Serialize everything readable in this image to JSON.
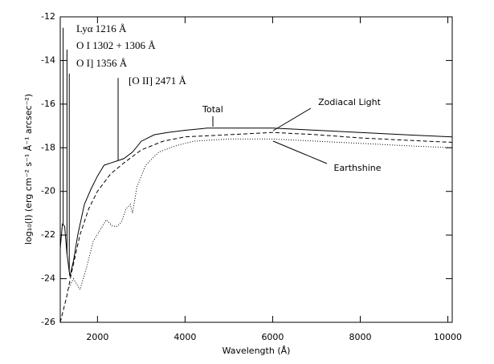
{
  "chart_data": {
    "type": "line",
    "xlabel": "Wavelength (Å)",
    "ylabel": "log₁₀(I) (erg cm⁻² s⁻¹ Å⁻¹ arcsec⁻²)",
    "xlim": [
      1150,
      10100
    ],
    "xticks": [
      2000,
      4000,
      6000,
      8000,
      10000
    ],
    "ylim": [
      -26,
      -12
    ],
    "yticks": [
      -12,
      -14,
      -16,
      -18,
      -20,
      -22,
      -24,
      -26
    ],
    "series": [
      {
        "name": "Total",
        "color": "#000000",
        "linestyle": "solid",
        "x": [
          1150,
          1200,
          1250,
          1300,
          1370,
          1450,
          1550,
          1700,
          1850,
          2000,
          2150,
          2300,
          2450,
          2600,
          2800,
          3000,
          3300,
          3600,
          4000,
          4500,
          5000,
          6000,
          7000,
          8000,
          9000,
          10100
        ],
        "values": [
          -22.6,
          -21.5,
          -21.6,
          -22.8,
          -23.9,
          -23.2,
          -22.0,
          -20.6,
          -19.9,
          -19.3,
          -18.8,
          -18.7,
          -18.6,
          -18.5,
          -18.2,
          -17.7,
          -17.4,
          -17.3,
          -17.2,
          -17.1,
          -17.1,
          -17.1,
          -17.2,
          -17.3,
          -17.4,
          -17.5
        ]
      },
      {
        "name": "Zodiacal Light",
        "color": "#000000",
        "linestyle": "dashed",
        "x": [
          1150,
          1300,
          1400,
          1600,
          1800,
          2000,
          2300,
          2600,
          3000,
          3500,
          4000,
          5000,
          6000,
          7000,
          8000,
          9000,
          10100
        ],
        "values": [
          -26,
          -24.8,
          -23.8,
          -22.0,
          -20.8,
          -20.0,
          -19.2,
          -18.7,
          -18.1,
          -17.7,
          -17.5,
          -17.4,
          -17.3,
          -17.4,
          -17.55,
          -17.65,
          -17.75
        ]
      },
      {
        "name": "Earthshine",
        "color": "#000000",
        "linestyle": "dotted",
        "x": [
          1350,
          1450,
          1600,
          1750,
          1900,
          2050,
          2200,
          2350,
          2450,
          2550,
          2650,
          2750,
          2800,
          2900,
          3100,
          3400,
          3800,
          4200,
          5000,
          6000,
          7000,
          8000,
          9000,
          10100
        ],
        "values": [
          -24.4,
          -24.0,
          -24.5,
          -23.5,
          -22.3,
          -21.8,
          -21.3,
          -21.6,
          -21.6,
          -21.4,
          -20.8,
          -20.6,
          -21.0,
          -19.8,
          -18.8,
          -18.2,
          -17.9,
          -17.7,
          -17.6,
          -17.6,
          -17.7,
          -17.8,
          -17.9,
          -18.0
        ]
      }
    ],
    "emission_lines": [
      {
        "label": "Lyα 1216 Å",
        "x": 1216,
        "peak": -12.5
      },
      {
        "label": "O I 1302 + 1306 Å",
        "x": 1304,
        "peak": -13.5
      },
      {
        "label": "O I] 1356 Å",
        "x": 1356,
        "peak": -14.6
      },
      {
        "label": "[O II] 2471 Å",
        "x": 2471,
        "peak": -14.8
      }
    ]
  }
}
